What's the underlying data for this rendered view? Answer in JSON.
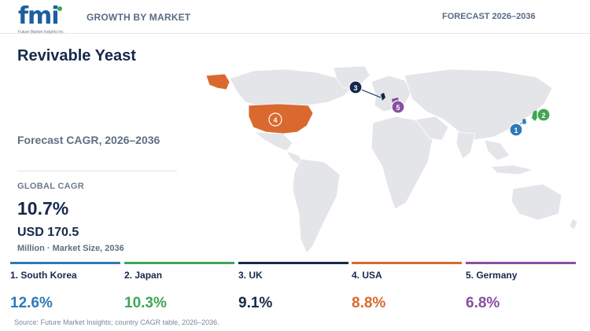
{
  "header": {
    "logo_text": "fmi",
    "logo_tagline": "Future Market Insights Inc.",
    "left": "GROWTH BY MARKET",
    "right": "FORECAST 2026–2036"
  },
  "title": "Revivable Yeast",
  "cagr_label": "Forecast CAGR, 2026–2036",
  "global": {
    "label": "GLOBAL CAGR",
    "value": "10.7%",
    "market_size": "USD 170.5",
    "market_unit": "Million · Market Size, 2036"
  },
  "countries": [
    {
      "rank": "1",
      "name": "1. South Korea",
      "value": "12.6%",
      "color": "#2f7ab8"
    },
    {
      "rank": "2",
      "name": "2. Japan",
      "value": "10.3%",
      "color": "#3fa654"
    },
    {
      "rank": "3",
      "name": "3. UK",
      "value": "9.1%",
      "color": "#16294a"
    },
    {
      "rank": "4",
      "name": "4. USA",
      "value": "8.8%",
      "color": "#d9692e"
    },
    {
      "rank": "5",
      "name": "5. Germany",
      "value": "6.8%",
      "color": "#8a4fa0"
    }
  ],
  "source": "Source: Future Market Insights; country CAGR table, 2026–2036.",
  "colors": {
    "land": "#e3e5e8",
    "text": "#16294a"
  }
}
